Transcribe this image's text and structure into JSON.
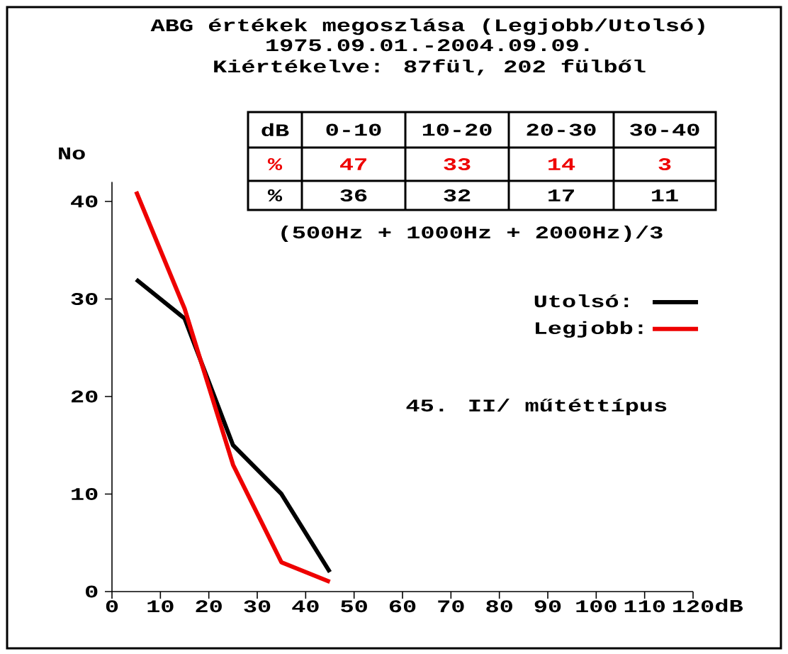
{
  "chart_data": {
    "type": "line",
    "title": "ABG értékek megoszlása (Legjobb/Utolsó)",
    "subtitle": "1975.09.01.-2004.09.09.",
    "xlabel": "dB",
    "ylabel": "No",
    "x": [
      5,
      15,
      25,
      35,
      45
    ],
    "series": [
      {
        "name": "Utolsó:",
        "color": "#000000",
        "values": [
          32,
          28,
          15,
          10,
          2
        ]
      },
      {
        "name": "Legjobb:",
        "color": "#ee0000",
        "values": [
          41,
          29,
          13,
          3,
          1
        ]
      }
    ],
    "xlim": [
      0,
      120
    ],
    "xticks": [
      0,
      10,
      20,
      30,
      40,
      50,
      60,
      70,
      80,
      90,
      100,
      110,
      120
    ],
    "ylim": [
      0,
      42
    ],
    "yticks": [
      0,
      10,
      20,
      30,
      40
    ],
    "grid": false,
    "legend": "right",
    "marker": "none",
    "line_style": "solid",
    "annotations": [
      "Kiértékelve: 87fül, 202 fülből",
      "dB",
      "0-10",
      "10-20",
      "20-30",
      "30-40",
      "%",
      "47",
      "33",
      "14",
      "3",
      "%",
      "36",
      "32",
      "17",
      "11",
      "(500Hz + 1000Hz + 2000Hz)/3",
      "45. II/ műtéttípus"
    ]
  }
}
